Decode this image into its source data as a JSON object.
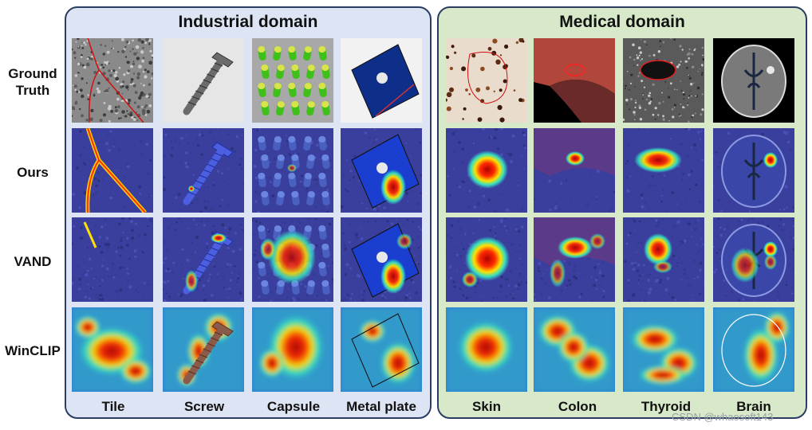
{
  "industrial": {
    "title": "Industrial domain",
    "columns": [
      "Tile",
      "Screw",
      "Capsule",
      "Metal plate"
    ]
  },
  "medical": {
    "title": "Medical domain",
    "columns": [
      "Skin",
      "Colon",
      "Thyroid",
      "Brain"
    ]
  },
  "rows": [
    {
      "label": "Ground\nTruth"
    },
    {
      "label": "Ours"
    },
    {
      "label": "VAND"
    },
    {
      "label": "WinCLIP"
    }
  ],
  "watermark": "CSDN @whaosoft143"
}
